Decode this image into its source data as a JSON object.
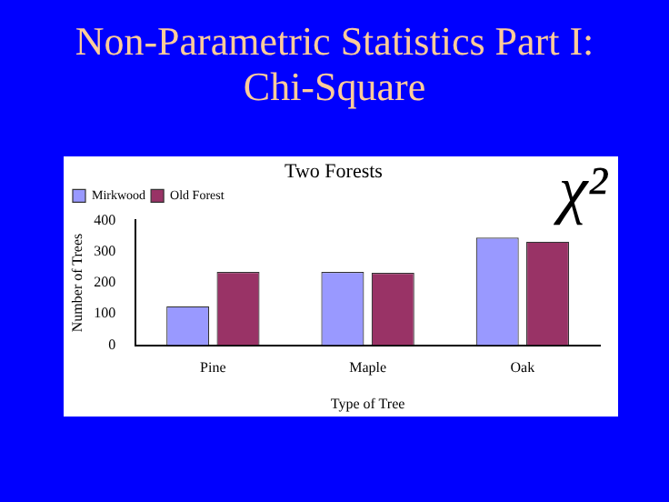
{
  "chart_data": {
    "type": "bar",
    "title": "Non-Parametric Statistics Part I: Chi-Square",
    "subtitle": "Two Forests",
    "xlabel": "Type of Tree",
    "ylabel": "Number of Trees",
    "categories": [
      "Pine",
      "Maple",
      "Oak"
    ],
    "series": [
      {
        "name": "Mirkwood",
        "color": "#9999ff",
        "values": [
          125,
          235,
          345
        ]
      },
      {
        "name": "Old Forest",
        "color": "#993366",
        "values": [
          235,
          232,
          332
        ]
      }
    ],
    "ylim": [
      0,
      400
    ],
    "yticks": [
      0,
      100,
      200,
      300,
      400
    ],
    "grid": false,
    "legend": "top left",
    "annotations": [
      "χ²"
    ]
  }
}
